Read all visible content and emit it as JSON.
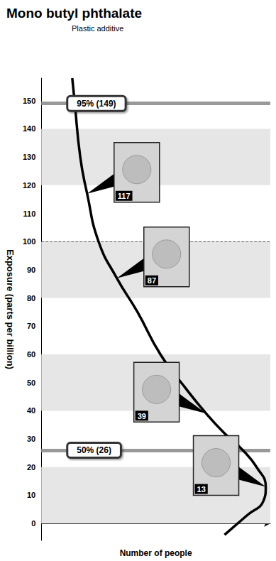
{
  "chart_data": {
    "type": "line",
    "title": "Mono butyl phthalate",
    "subtitle": "Plastic additive",
    "x_label": "Number of people",
    "y_label": "Exposure (parts per billion)",
    "x": [
      13.5,
      14.5,
      17,
      20,
      25,
      33,
      42,
      52,
      63,
      72,
      80,
      88,
      94,
      98,
      97,
      90,
      80
    ],
    "values": [
      158,
      150,
      130,
      117,
      100,
      87,
      75,
      60,
      48,
      39,
      32,
      26,
      20,
      13,
      8,
      3,
      -4
    ],
    "color": "#000000",
    "xlim": [
      0,
      100
    ],
    "xticks": [],
    "ylim": [
      -6,
      158
    ],
    "yticks": [
      0,
      10,
      20,
      30,
      40,
      50,
      60,
      70,
      80,
      90,
      100,
      110,
      120,
      130,
      140,
      150
    ],
    "tick_labels": "y",
    "grid": false,
    "bands": [
      [
        0,
        20
      ],
      [
        40,
        60
      ],
      [
        80,
        100
      ],
      [
        120,
        140
      ]
    ],
    "reference_lines": [
      {
        "value": 149,
        "label": "95% (149)",
        "line_style": "solid",
        "color": "#999999"
      },
      {
        "value": 100,
        "line_style": "dashed",
        "color": "#555555"
      },
      {
        "value": 26,
        "label": "50% (26)",
        "line_style": "solid",
        "color": "#999999"
      }
    ],
    "annotations": [
      {
        "value": 117,
        "x": 20
      },
      {
        "value": 87,
        "x": 33
      },
      {
        "value": 39,
        "x": 72
      },
      {
        "value": 13,
        "x": 98
      }
    ]
  }
}
